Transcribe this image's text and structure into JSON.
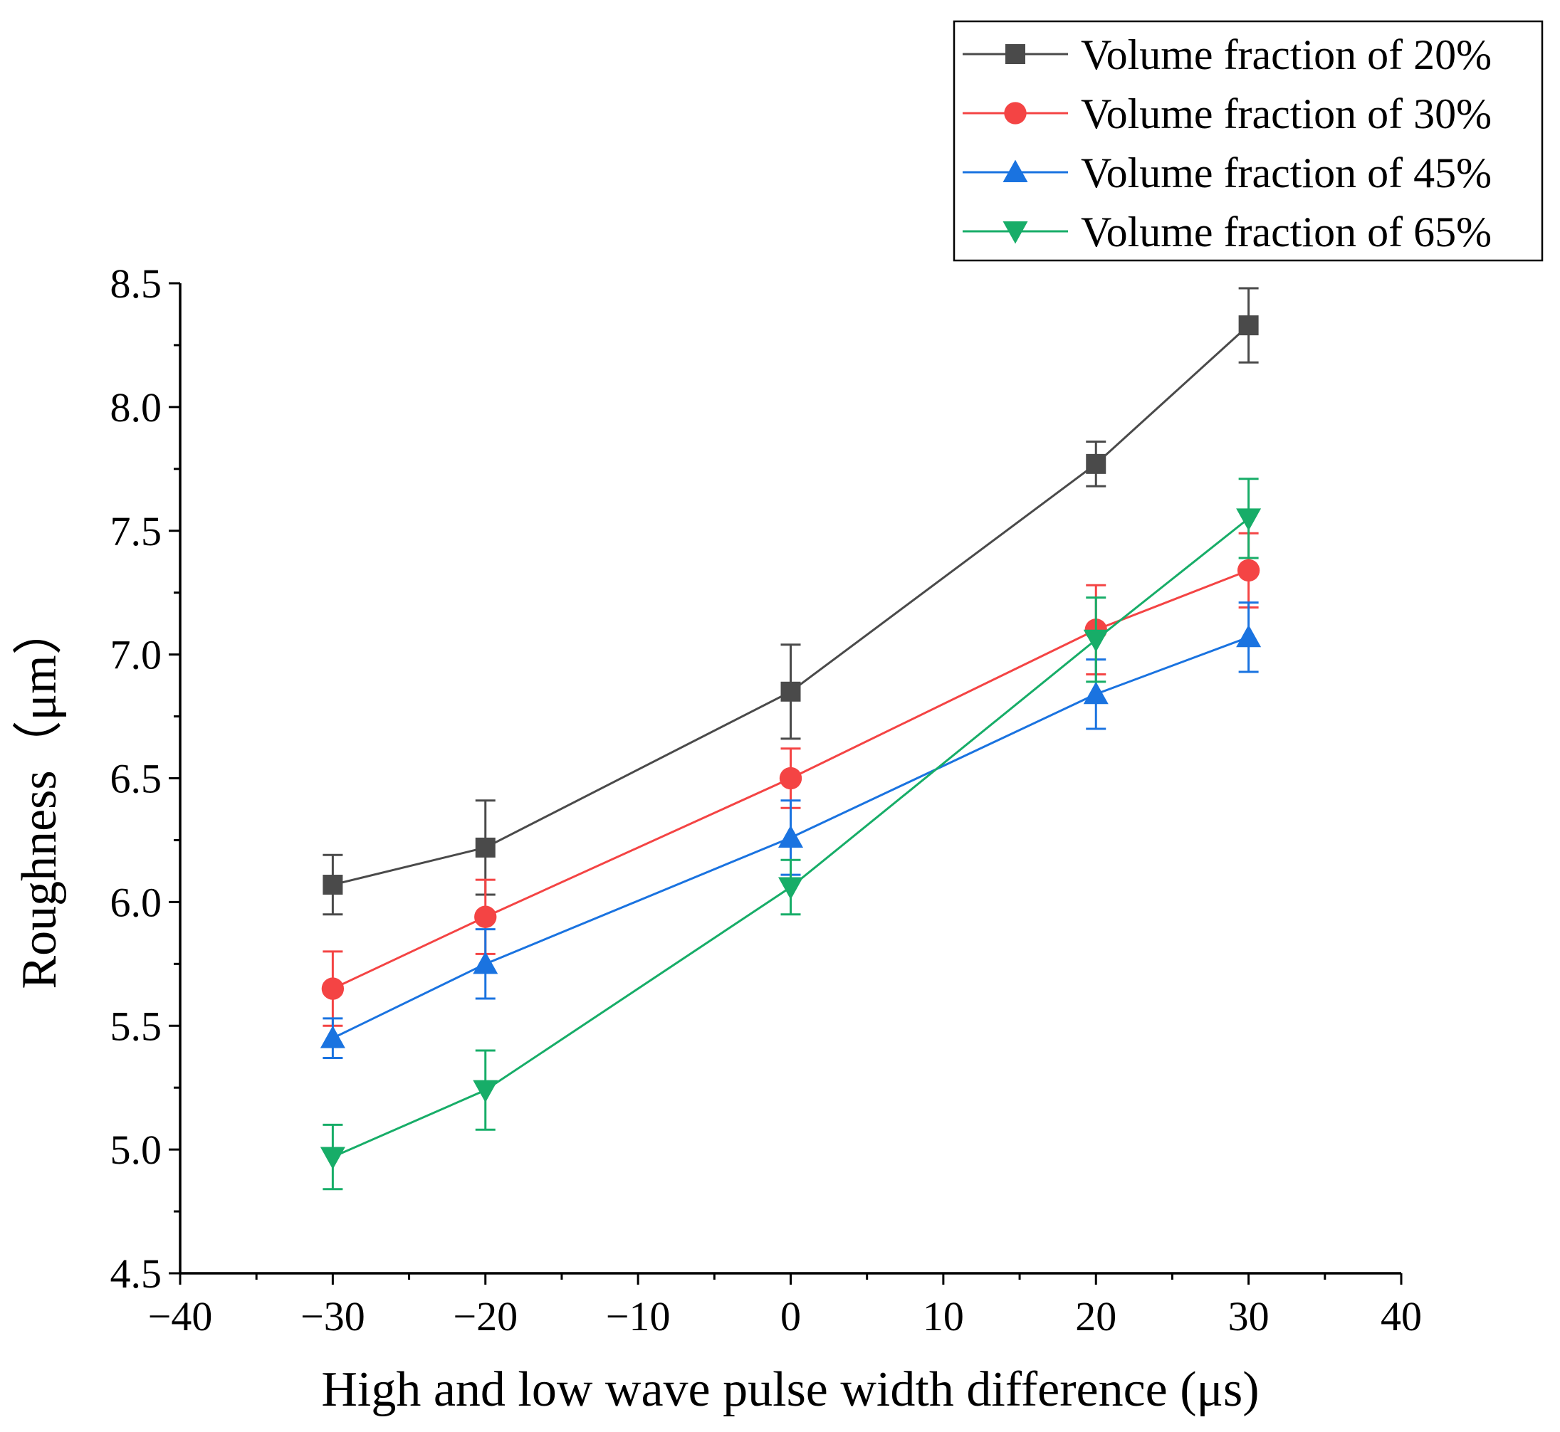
{
  "chart_data": {
    "type": "line",
    "title": "",
    "xlabel": "High and low wave pulse width difference (μs)",
    "ylabel": "Roughness（μm）",
    "xlim": [
      -40,
      40
    ],
    "ylim": [
      4.5,
      8.5
    ],
    "xticks": [
      -40,
      -30,
      -20,
      -10,
      0,
      10,
      20,
      30,
      40
    ],
    "xtick_labels": [
      "−40",
      "−30",
      "−20",
      "−10",
      "0",
      "10",
      "20",
      "30",
      "40"
    ],
    "yticks": [
      4.5,
      5.0,
      5.5,
      6.0,
      6.5,
      7.0,
      7.5,
      8.0,
      8.5
    ],
    "ytick_labels": [
      "4.5",
      "5.0",
      "5.5",
      "6.0",
      "6.5",
      "7.0",
      "7.5",
      "8.0",
      "8.5"
    ],
    "grid": false,
    "legend_position": "top-right",
    "x": [
      -30,
      -20,
      0,
      20,
      30
    ],
    "series": [
      {
        "name": "Volume fraction of 20%",
        "color": "#4a4a4a",
        "marker": "square",
        "values": [
          6.07,
          6.22,
          6.85,
          7.77,
          8.33
        ],
        "errors": [
          0.12,
          0.19,
          0.19,
          0.09,
          0.15
        ]
      },
      {
        "name": "Volume fraction of 30%",
        "color": "#f44444",
        "marker": "circle",
        "values": [
          5.65,
          5.94,
          6.5,
          7.1,
          7.34
        ],
        "errors": [
          0.15,
          0.15,
          0.12,
          0.18,
          0.15
        ]
      },
      {
        "name": "Volume fraction of 45%",
        "color": "#1a73e0",
        "marker": "triangle-up",
        "values": [
          5.45,
          5.75,
          6.26,
          6.84,
          7.07
        ],
        "errors": [
          0.08,
          0.14,
          0.15,
          0.14,
          0.14
        ]
      },
      {
        "name": "Volume fraction of 65%",
        "color": "#17ad68",
        "marker": "triangle-down",
        "values": [
          4.97,
          5.24,
          6.06,
          7.06,
          7.55
        ],
        "errors": [
          0.13,
          0.16,
          0.11,
          0.17,
          0.16
        ]
      }
    ]
  }
}
